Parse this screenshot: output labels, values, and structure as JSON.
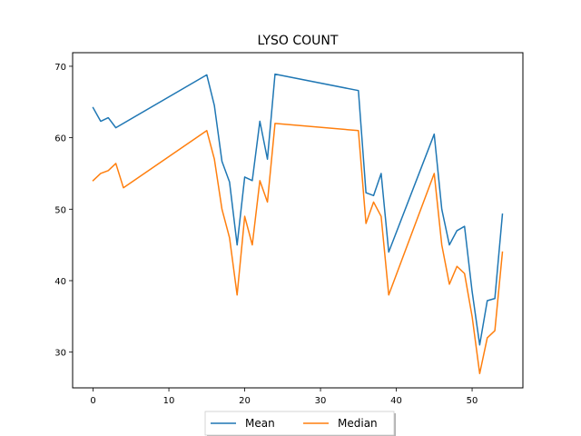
{
  "chart_data": {
    "type": "line",
    "title": "LYSO COUNT",
    "xlabel": "",
    "ylabel": "",
    "xlim": [
      -2.7,
      56.7
    ],
    "ylim": [
      25.0,
      71.9
    ],
    "x_ticks": [
      0,
      10,
      20,
      30,
      40,
      50
    ],
    "y_ticks": [
      30,
      40,
      50,
      60,
      70
    ],
    "grid": false,
    "legend": {
      "placement": "lower-center, below axes",
      "ncol": 2
    },
    "series": [
      {
        "name": "Mean",
        "color": "#1f77b4",
        "x": [
          0,
          1,
          2,
          3,
          15,
          16,
          17,
          18,
          19,
          20,
          21,
          22,
          23,
          24,
          35,
          36,
          37,
          38,
          39,
          45,
          46,
          47,
          48,
          49,
          50,
          51,
          52,
          53,
          54
        ],
        "y": [
          64.2,
          62.3,
          62.8,
          61.4,
          68.8,
          64.5,
          56.7,
          53.8,
          45.0,
          54.5,
          54.0,
          62.3,
          57.0,
          68.9,
          66.6,
          52.3,
          51.9,
          55.0,
          44.0,
          60.5,
          50.0,
          45.0,
          47.0,
          47.6,
          38.5,
          31.0,
          37.2,
          37.5,
          49.3
        ]
      },
      {
        "name": "Median",
        "color": "#ff7f0e",
        "x": [
          0,
          1,
          2,
          3,
          4,
          15,
          16,
          17,
          18,
          19,
          20,
          21,
          22,
          23,
          24,
          35,
          36,
          37,
          38,
          39,
          45,
          46,
          47,
          48,
          49,
          50,
          51,
          52,
          53,
          54
        ],
        "y": [
          54.0,
          55.0,
          55.4,
          56.4,
          53.0,
          61.0,
          57.0,
          50.0,
          46.0,
          38.0,
          49.0,
          45.0,
          54.0,
          51.0,
          62.0,
          61.0,
          48.0,
          51.0,
          49.0,
          38.0,
          55.0,
          45.0,
          39.5,
          42.0,
          41.0,
          35.0,
          27.0,
          32.0,
          33.0,
          44.0
        ]
      }
    ]
  }
}
